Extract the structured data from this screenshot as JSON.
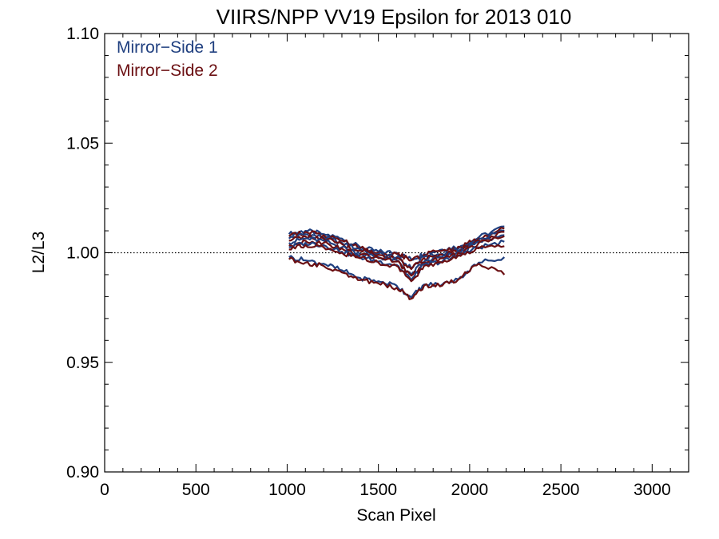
{
  "chart_data": {
    "type": "line",
    "title": "VIIRS/NPP VV19 Epsilon for 2013 010",
    "xlabel": "Scan Pixel",
    "ylabel": "L2/L3",
    "xlim": [
      0,
      3200
    ],
    "ylim": [
      0.9,
      1.1
    ],
    "x_ticks": [
      0,
      500,
      1000,
      1500,
      2000,
      2500,
      3000
    ],
    "x_tick_labels": [
      "0",
      "500",
      "1000",
      "1500",
      "2000",
      "2500",
      "3000"
    ],
    "y_ticks": [
      0.9,
      0.95,
      1.0,
      1.05,
      1.1
    ],
    "y_tick_labels": [
      "0.90",
      "0.95",
      "1.00",
      "1.05",
      "1.10"
    ],
    "reference_line": 1.0,
    "legend": {
      "placement": "top-left",
      "entries": [
        "Mirror−Side 1",
        "Mirror−Side 2"
      ]
    },
    "colors": {
      "mirror_side_1": "#1f3f7f",
      "mirror_side_2": "#6b0f12"
    },
    "x": [
      1010,
      1100,
      1200,
      1300,
      1400,
      1500,
      1600,
      1680,
      1750,
      1850,
      1950,
      2050,
      2190
    ],
    "series": [
      {
        "name": "Mirror−Side 1",
        "color": "#1f3f7f",
        "lines": [
          [
            1.0085,
            1.01,
            1.0085,
            1.0065,
            1.0025,
            1.0005,
            1.0,
            0.997,
            0.9995,
            1.0015,
            1.003,
            1.007,
            1.012
          ],
          [
            1.0065,
            1.0085,
            1.007,
            1.0045,
            1.0015,
            0.9995,
            0.998,
            0.993,
            0.998,
            0.9995,
            1.0015,
            1.006,
            1.01
          ],
          [
            1.0045,
            1.0065,
            1.0055,
            1.0025,
            0.9995,
            0.998,
            0.9965,
            0.99,
            0.996,
            0.998,
            1.0,
            1.005,
            1.008
          ],
          [
            1.0025,
            1.0045,
            1.0035,
            1.0005,
            0.998,
            0.996,
            0.9945,
            0.9875,
            0.9945,
            0.996,
            0.999,
            1.0025,
            1.005
          ],
          [
            0.998,
            0.9965,
            0.995,
            0.992,
            0.9885,
            0.987,
            0.985,
            0.9795,
            0.9855,
            0.9855,
            0.989,
            0.9955,
            0.998
          ]
        ]
      },
      {
        "name": "Mirror−Side 2",
        "color": "#6b0f12",
        "lines": [
          [
            1.0075,
            1.0095,
            1.008,
            1.0055,
            1.002,
            1.0,
            0.9995,
            0.9965,
            0.999,
            1.001,
            1.0025,
            1.0065,
            1.011
          ],
          [
            1.0055,
            1.0075,
            1.0065,
            1.004,
            1.001,
            0.999,
            0.9975,
            0.9925,
            0.9975,
            0.999,
            1.001,
            1.0055,
            1.0095
          ],
          [
            1.0035,
            1.0055,
            1.0045,
            1.002,
            0.999,
            0.9975,
            0.996,
            0.9895,
            0.9955,
            0.9975,
            0.9995,
            1.0045,
            1.0075
          ],
          [
            1.0015,
            1.0035,
            1.0025,
            1.0,
            0.9975,
            0.9955,
            0.994,
            0.987,
            0.994,
            0.9955,
            0.9985,
            1.002,
            1.003
          ],
          [
            0.997,
            0.9955,
            0.994,
            0.991,
            0.9875,
            0.986,
            0.984,
            0.979,
            0.985,
            0.985,
            0.9885,
            0.995,
            0.99
          ]
        ]
      }
    ]
  }
}
